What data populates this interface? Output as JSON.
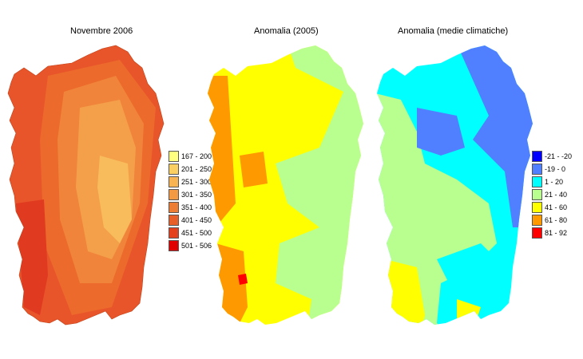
{
  "panels": [
    {
      "title": "Novembre 2006",
      "map_palette": [
        "#e8552a",
        "#ec6a2c",
        "#f0843a",
        "#f4a04a",
        "#f8bc5c",
        "#e03a20"
      ],
      "legend": [
        {
          "label": "167 - 200",
          "color": "#ffff80"
        },
        {
          "label": "201 - 250",
          "color": "#fbd060"
        },
        {
          "label": "251 - 300",
          "color": "#f7b450"
        },
        {
          "label": "301 - 350",
          "color": "#f39a42"
        },
        {
          "label": "351 - 400",
          "color": "#ee7d34"
        },
        {
          "label": "401 - 450",
          "color": "#e95f28"
        },
        {
          "label": "451 - 500",
          "color": "#e5401c"
        },
        {
          "label": "501 - 506",
          "color": "#e00000"
        }
      ]
    },
    {
      "title": "Anomalia (2005)",
      "map_palette": [
        "#ffff00",
        "#b8ff90",
        "#ff9900",
        "#ff0000"
      ]
    },
    {
      "title": "Anomalia (medie climatiche)",
      "map_palette": [
        "#00ffff",
        "#b8ff90",
        "#5080ff",
        "#ffff00"
      ],
      "legend": [
        {
          "label": "-21 - -20",
          "color": "#0000ff"
        },
        {
          "label": "-19 - 0",
          "color": "#5080ff"
        },
        {
          "label": "1 - 20",
          "color": "#00ffff"
        },
        {
          "label": "21 - 40",
          "color": "#b8ff90"
        },
        {
          "label": "41 - 60",
          "color": "#ffff00"
        },
        {
          "label": "61 - 80",
          "color": "#ff9900"
        },
        {
          "label": "81 - 92",
          "color": "#ff0000"
        }
      ]
    }
  ]
}
